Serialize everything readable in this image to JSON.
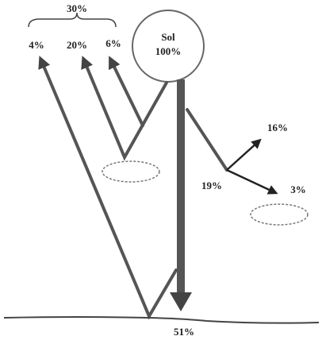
{
  "sun": {
    "name": "Sol",
    "value": "100%"
  },
  "reflected": {
    "total": "30%",
    "items": [
      "4%",
      "20%",
      "6%"
    ]
  },
  "atmosphere": {
    "total": "19%",
    "items": [
      "16%",
      "3%"
    ]
  },
  "surface": "51%"
}
